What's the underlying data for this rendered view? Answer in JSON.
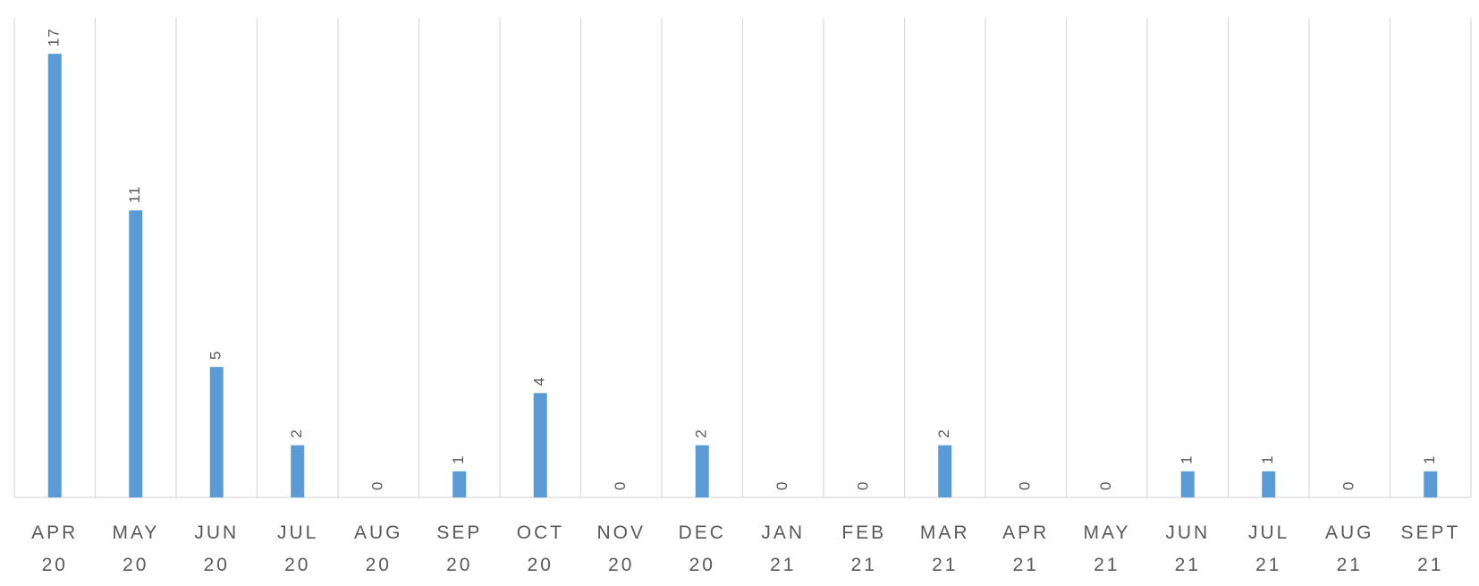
{
  "chart_data": {
    "type": "bar",
    "categories": [
      "APR 20",
      "MAY 20",
      "JUN 20",
      "JUL 20",
      "AUG 20",
      "SEP 20",
      "OCT 20",
      "NOV 20",
      "DEC 20",
      "JAN 21",
      "FEB 21",
      "MAR 21",
      "APR 21",
      "MAY 21",
      "JUN 21",
      "JUL 21",
      "AUG 21",
      "SEPT 21"
    ],
    "values": [
      17,
      11,
      5,
      2,
      0,
      1,
      4,
      0,
      2,
      0,
      0,
      2,
      0,
      0,
      1,
      1,
      0,
      1
    ],
    "color": "#5b9bd5",
    "ylim": [
      0,
      18
    ]
  }
}
